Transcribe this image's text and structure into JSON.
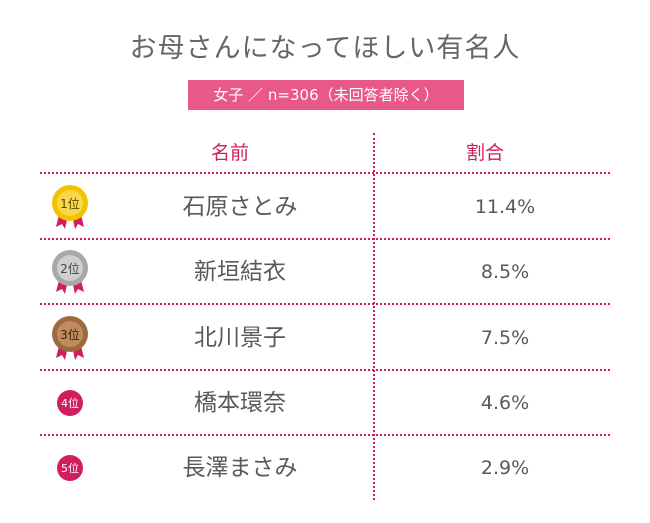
{
  "title": "お母さんになってほしい有名人",
  "subtitle": "女子 ／ n=306（未回答者除く）",
  "headers": {
    "name": "名前",
    "ratio": "割合"
  },
  "colors": {
    "accent": "#d01e5e",
    "subtitle_bg": "#e8588a",
    "gold": "#f2c200",
    "silver": "#b5b5b5",
    "bronze": "#b07a4c",
    "plain_badge": "#d01e5e"
  },
  "rows": [
    {
      "rank": "1位",
      "badge": "gold-medal",
      "name": "石原さとみ",
      "value": "11.4%"
    },
    {
      "rank": "2位",
      "badge": "silver-medal",
      "name": "新垣結衣",
      "value": "8.5%"
    },
    {
      "rank": "3位",
      "badge": "bronze-medal",
      "name": "北川景子",
      "value": "7.5%"
    },
    {
      "rank": "4位",
      "badge": "red-circle",
      "name": "橋本環奈",
      "value": "4.6%"
    },
    {
      "rank": "5位",
      "badge": "red-circle",
      "name": "長澤まさみ",
      "value": "2.9%"
    }
  ],
  "chart_data": {
    "type": "table",
    "title": "お母さんになってほしい有名人",
    "subtitle": "女子 ／ n=306（未回答者除く）",
    "columns": [
      "名前",
      "割合"
    ],
    "categories": [
      "石原さとみ",
      "新垣結衣",
      "北川景子",
      "橋本環奈",
      "長澤まさみ"
    ],
    "values": [
      11.4,
      8.5,
      7.5,
      4.6,
      2.9
    ],
    "unit": "%"
  }
}
